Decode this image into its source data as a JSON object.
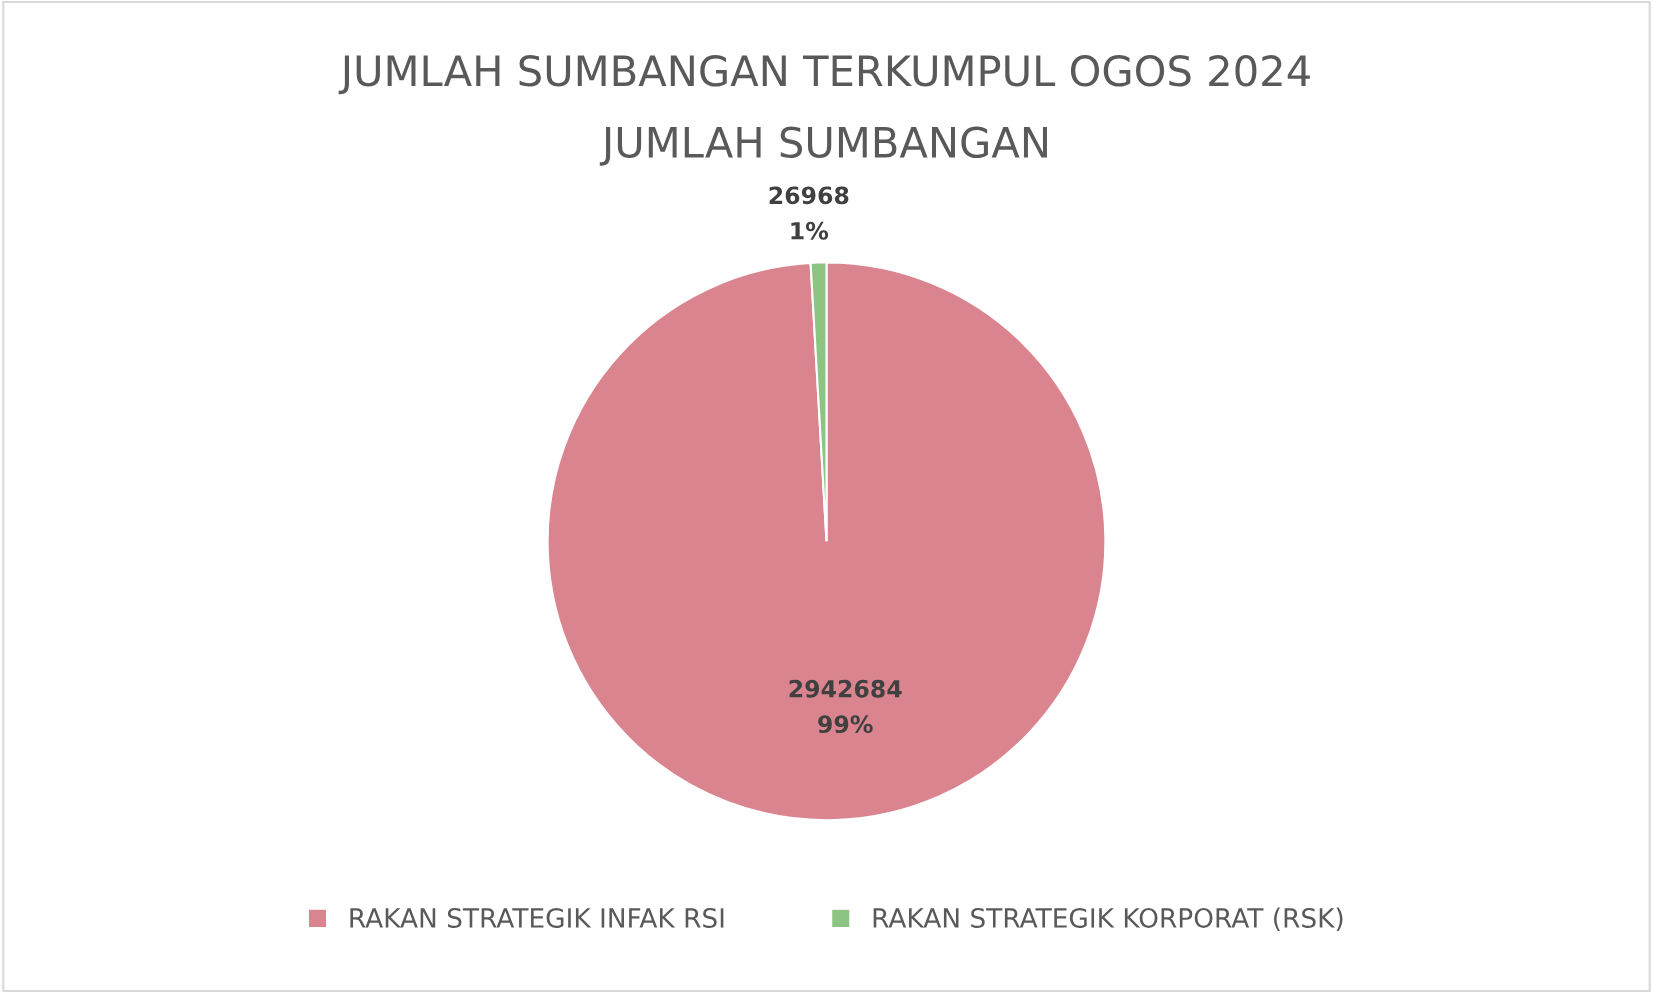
{
  "chart_data": {
    "type": "pie",
    "title": "JUMLAH SUMBANGAN TERKUMPUL OGOS 2024",
    "subtitle": "JUMLAH SUMBANGAN",
    "categories": [
      "RAKAN STRATEGIK INFAK RSI",
      "RAKAN STRATEGIK KORPORAT (RSK)"
    ],
    "values": [
      2942684,
      26968
    ],
    "colors": [
      "#d9848f",
      "#8dc383"
    ],
    "value_labels": [
      "2942684\n99%",
      "26968\n1%"
    ],
    "legend": "bottom"
  }
}
